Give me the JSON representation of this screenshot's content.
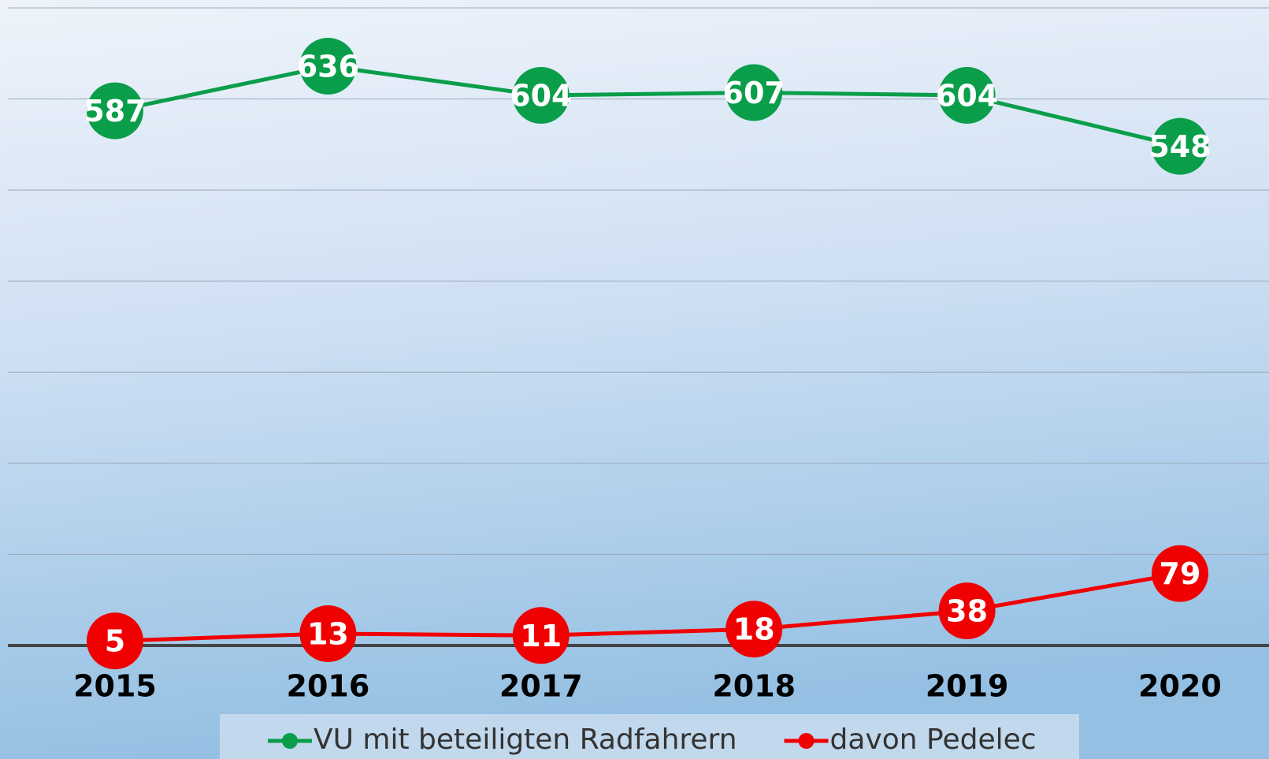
{
  "chart_data": {
    "type": "line",
    "categories": [
      "2015",
      "2016",
      "2017",
      "2018",
      "2019",
      "2020"
    ],
    "series": [
      {
        "name": "VU mit beteiligten Radfahrern",
        "color": "#0a9e4a",
        "values": [
          587,
          636,
          604,
          607,
          604,
          548
        ]
      },
      {
        "name": "davon Pedelec",
        "color": "#f00000",
        "values": [
          5,
          13,
          11,
          18,
          38,
          79
        ]
      }
    ],
    "ylim": [
      0,
      700
    ],
    "yticks": [
      0,
      100,
      200,
      300,
      400,
      500,
      600,
      700
    ],
    "grid": true,
    "legend": "bottom"
  }
}
